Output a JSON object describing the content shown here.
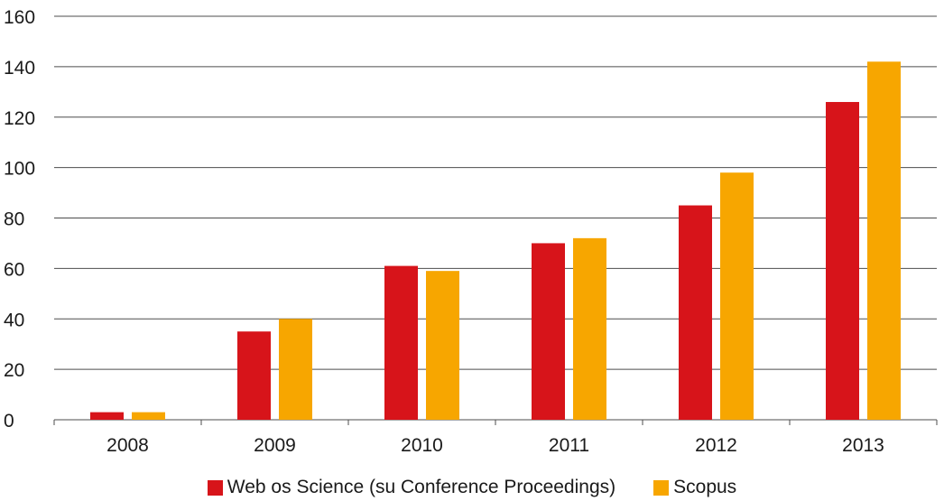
{
  "colors": {
    "wos": "#d7141a",
    "scopus": "#f7a600",
    "grid": "#4d4d4d"
  },
  "chart_data": {
    "type": "bar",
    "categories": [
      "2008",
      "2009",
      "2010",
      "2011",
      "2012",
      "2013"
    ],
    "series": [
      {
        "name": "Web os Science (su Conference Proceedings)",
        "values": [
          3,
          35,
          61,
          70,
          85,
          126
        ]
      },
      {
        "name": "Scopus",
        "values": [
          3,
          40,
          59,
          72,
          98,
          142
        ]
      }
    ],
    "yticks": [
      "0",
      "20",
      "40",
      "60",
      "80",
      "100",
      "120",
      "140",
      "160"
    ],
    "ylim": [
      0,
      160
    ],
    "grid": true,
    "legend": "bottom"
  }
}
